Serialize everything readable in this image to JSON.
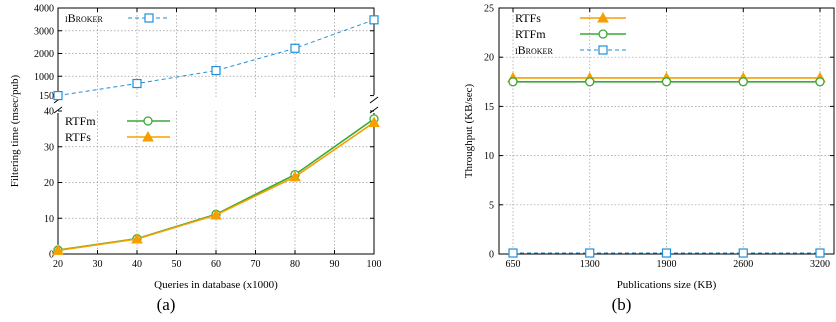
{
  "chart_data": [
    {
      "type": "line",
      "panel_label": "(a)",
      "xlabel": "Queries in database (x1000)",
      "ylabel": "Filtering time (msec/pub)",
      "x": [
        20,
        40,
        60,
        80,
        100
      ],
      "xlim": [
        20,
        100
      ],
      "xticks": [
        "20",
        "30",
        "40",
        "50",
        "60",
        "70",
        "80",
        "90",
        "100"
      ],
      "broken_y_axis": true,
      "upper": {
        "ylim": [
          0,
          4000
        ],
        "yticks": [
          "150",
          "1000",
          "2000",
          "3000",
          "4000"
        ],
        "series": [
          {
            "name": "iBroker",
            "color": "#1f8fd8",
            "style": "dashed",
            "marker": "square",
            "values": [
              150,
              680,
              1250,
              2230,
              3480
            ]
          }
        ]
      },
      "lower": {
        "ylim": [
          0,
          40
        ],
        "yticks": [
          "0",
          "10",
          "20",
          "30",
          "40"
        ],
        "series": [
          {
            "name": "RTFm",
            "color": "#3aa935",
            "style": "solid",
            "marker": "circle",
            "values": [
              1.1,
              4.3,
              11.1,
              22.2,
              37.8
            ]
          },
          {
            "name": "RTFs",
            "color": "#f5a000",
            "style": "solid",
            "marker": "triangle",
            "values": [
              1.0,
              4.2,
              10.9,
              21.6,
              36.8
            ]
          }
        ]
      },
      "grid": true
    },
    {
      "type": "line",
      "panel_label": "(b)",
      "xlabel": "Publications size (KB)",
      "ylabel": "Throughput (KB/sec)",
      "x": [
        650,
        1300,
        1950,
        2600,
        3250
      ],
      "xticks": [
        "650",
        "1300",
        "1900",
        "2600",
        "3200"
      ],
      "ylim": [
        0,
        25
      ],
      "yticks": [
        "0",
        "5",
        "10",
        "15",
        "20",
        "25"
      ],
      "series": [
        {
          "name": "RTFs",
          "color": "#f5a000",
          "style": "solid",
          "marker": "triangle",
          "values": [
            17.9,
            17.9,
            17.9,
            17.9,
            17.9
          ]
        },
        {
          "name": "RTFm",
          "color": "#3aa935",
          "style": "solid",
          "marker": "circle",
          "values": [
            17.5,
            17.5,
            17.5,
            17.5,
            17.5
          ]
        },
        {
          "name": "iBroker",
          "color": "#1f8fd8",
          "style": "dashed",
          "marker": "square",
          "values": [
            0.1,
            0.1,
            0.1,
            0.1,
            0.1
          ]
        }
      ],
      "grid": true
    }
  ]
}
